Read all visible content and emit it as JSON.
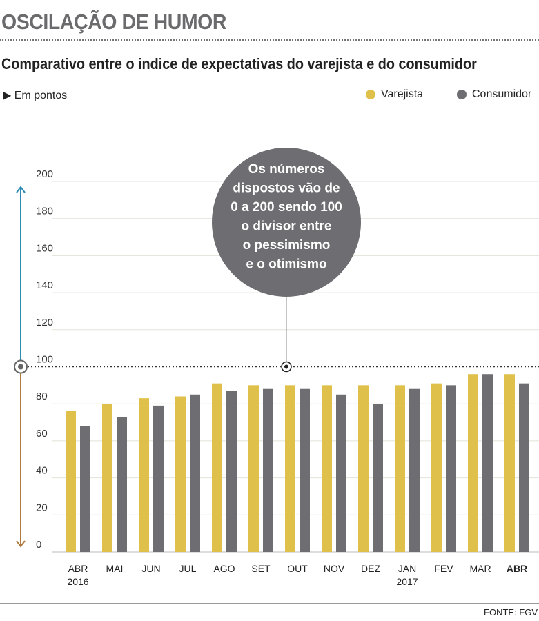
{
  "header": {
    "title": "OSCILAÇÃO DE HUMOR",
    "subtitle": "Comparativo entre o indice de expectativas do varejista e do consumidor",
    "unit": "Em pontos",
    "source": "FONTE: FGV"
  },
  "colors": {
    "varejista": "#dfc04a",
    "consumidor": "#6e6e72",
    "up_arrow": "#2c8bb0",
    "down_arrow": "#b07a3c"
  },
  "chart_data": {
    "type": "bar",
    "title": "OSCILAÇÃO DE HUMOR",
    "ylabel": "Em pontos",
    "xlabel": "",
    "ylim": [
      0,
      200
    ],
    "yticks": [
      0,
      20,
      40,
      60,
      80,
      100,
      120,
      140,
      160,
      180,
      200
    ],
    "categories": [
      "ABR",
      "MAI",
      "JUN",
      "JUL",
      "AGO",
      "SET",
      "OUT",
      "NOV",
      "DEZ",
      "JAN",
      "FEV",
      "MAR",
      "ABR"
    ],
    "category_years": [
      "2016",
      "",
      "",
      "",
      "",
      "",
      "",
      "",
      "",
      "2017",
      "",
      "",
      ""
    ],
    "series": [
      {
        "name": "Varejista",
        "values": [
          76,
          80,
          83,
          84,
          91,
          90,
          90,
          90,
          90,
          90,
          91,
          96,
          96
        ]
      },
      {
        "name": "Consumidor",
        "values": [
          68,
          73,
          79,
          85,
          87,
          88,
          88,
          85,
          80,
          88,
          90,
          96,
          91
        ]
      }
    ],
    "reference_line": 100,
    "annotation": [
      "Os números",
      "dispostos vão de",
      "0 a 200 sendo 100",
      "o divisor entre",
      "o pessimismo",
      "e o otimismo"
    ],
    "legend": "top-right",
    "grid": true
  }
}
